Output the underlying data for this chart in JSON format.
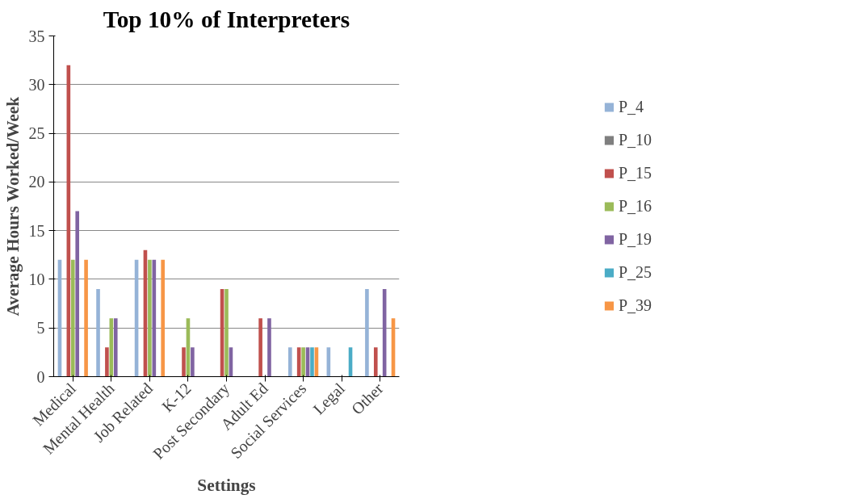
{
  "chart_data": {
    "type": "bar",
    "title": "Top 10% of Interpreters",
    "xlabel": "Settings",
    "ylabel": "Average Hours Worked/Week",
    "categories": [
      "Medical",
      "Mental Health",
      "Job Related",
      "K-12",
      "Post Secondary",
      "Adult Ed",
      "Social Services",
      "Legal",
      "Other"
    ],
    "series": [
      {
        "name": "P_4",
        "color": "#95b3d7",
        "values": [
          12,
          9,
          12,
          0,
          0,
          0,
          3,
          3,
          9
        ]
      },
      {
        "name": "P_10",
        "color": "#7f7f7f",
        "values": [
          0,
          0,
          0,
          0,
          0,
          0,
          0,
          0,
          0
        ]
      },
      {
        "name": "P_15",
        "color": "#c0504d",
        "values": [
          32,
          3,
          13,
          3,
          9,
          6,
          3,
          0,
          3
        ]
      },
      {
        "name": "P_16",
        "color": "#9bbb59",
        "values": [
          12,
          6,
          12,
          6,
          9,
          0,
          3,
          0,
          0
        ]
      },
      {
        "name": "P_19",
        "color": "#8064a2",
        "values": [
          17,
          6,
          12,
          3,
          3,
          6,
          3,
          0,
          9
        ]
      },
      {
        "name": "P_25",
        "color": "#4bacc6",
        "values": [
          0,
          0,
          0,
          0,
          0,
          0,
          3,
          3,
          0
        ]
      },
      {
        "name": "P_39",
        "color": "#f79646",
        "values": [
          12,
          0,
          12,
          0,
          0,
          0,
          3,
          0,
          6
        ]
      }
    ],
    "ylim": [
      0,
      35
    ],
    "yticks": [
      0,
      5,
      10,
      15,
      20,
      25,
      30,
      35
    ],
    "grid": "y",
    "legend": "right"
  }
}
